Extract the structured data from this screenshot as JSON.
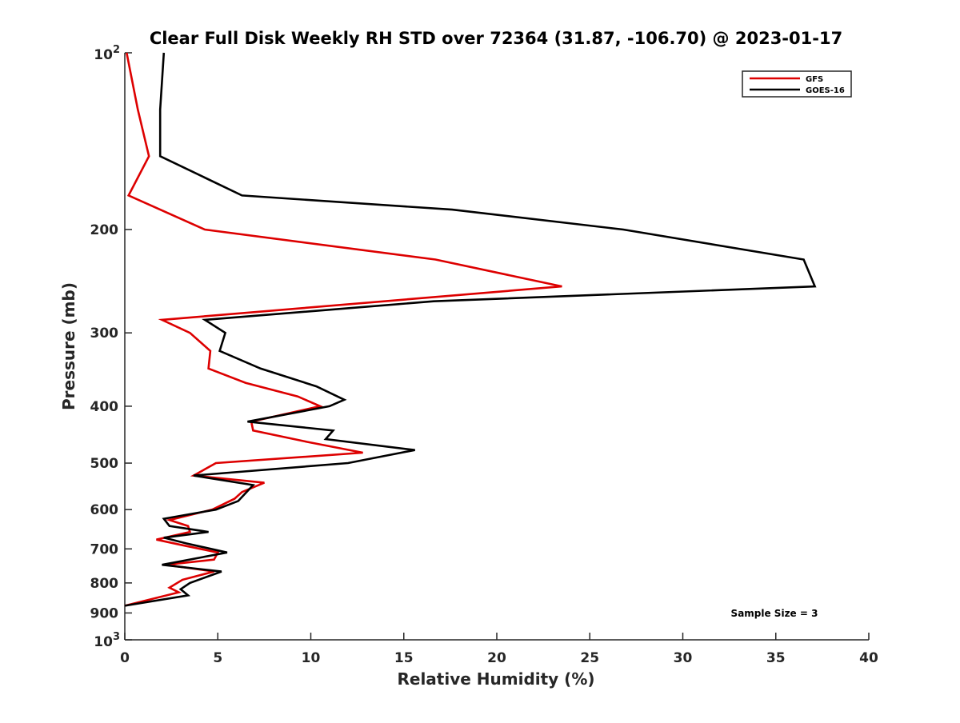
{
  "chart_data": {
    "type": "line",
    "title": "Clear Full Disk Weekly RH STD over 72364 (31.87, -106.70) @ 2023-01-17",
    "xlabel": "Relative Humidity (%)",
    "ylabel": "Pressure (mb)",
    "xlim": [
      0,
      40
    ],
    "ylim": [
      100,
      1000
    ],
    "y_scale": "log-reversed",
    "x_ticks": [
      0,
      5,
      10,
      15,
      20,
      25,
      30,
      35,
      40
    ],
    "y_ticks": [
      {
        "value": 100,
        "label": "10",
        "exp": "2"
      },
      {
        "value": 200,
        "label": "200"
      },
      {
        "value": 300,
        "label": "300"
      },
      {
        "value": 400,
        "label": "400"
      },
      {
        "value": 500,
        "label": "500"
      },
      {
        "value": 600,
        "label": "600"
      },
      {
        "value": 700,
        "label": "700"
      },
      {
        "value": 800,
        "label": "800"
      },
      {
        "value": 900,
        "label": "900"
      },
      {
        "value": 1000,
        "label": "10",
        "exp": "3"
      }
    ],
    "grid": false,
    "legend_position": "top-right",
    "annotation": "Sample Size = 3",
    "series": [
      {
        "name": "GFS",
        "color": "#dd0000",
        "points": [
          [
            0.1,
            100
          ],
          [
            0.7,
            125
          ],
          [
            1.3,
            150
          ],
          [
            0.2,
            175
          ],
          [
            4.3,
            200
          ],
          [
            16.7,
            225
          ],
          [
            23.5,
            250
          ],
          [
            2.0,
            285
          ],
          [
            3.5,
            300
          ],
          [
            4.6,
            322
          ],
          [
            4.5,
            345
          ],
          [
            6.5,
            365
          ],
          [
            9.3,
            385
          ],
          [
            10.5,
            400
          ],
          [
            6.8,
            425
          ],
          [
            6.9,
            440
          ],
          [
            9.8,
            460
          ],
          [
            12.8,
            480
          ],
          [
            4.9,
            500
          ],
          [
            3.7,
            525
          ],
          [
            7.5,
            540
          ],
          [
            6.3,
            560
          ],
          [
            5.9,
            575
          ],
          [
            4.7,
            600
          ],
          [
            2.4,
            625
          ],
          [
            3.4,
            640
          ],
          [
            3.5,
            655
          ],
          [
            1.7,
            675
          ],
          [
            3.1,
            690
          ],
          [
            5.0,
            710
          ],
          [
            4.8,
            730
          ],
          [
            2.2,
            745
          ],
          [
            4.8,
            765
          ],
          [
            3.1,
            790
          ],
          [
            2.4,
            815
          ],
          [
            2.9,
            830
          ],
          [
            0.0,
            875
          ]
        ]
      },
      {
        "name": "GOES-16",
        "color": "#000000",
        "points": [
          [
            2.1,
            100
          ],
          [
            1.9,
            125
          ],
          [
            1.9,
            150
          ],
          [
            6.3,
            175
          ],
          [
            17.6,
            185
          ],
          [
            26.8,
            200
          ],
          [
            36.5,
            225
          ],
          [
            37.1,
            250
          ],
          [
            16.6,
            265
          ],
          [
            4.3,
            285
          ],
          [
            5.4,
            300
          ],
          [
            5.1,
            322
          ],
          [
            7.3,
            345
          ],
          [
            10.3,
            370
          ],
          [
            11.8,
            390
          ],
          [
            11.0,
            400
          ],
          [
            6.6,
            425
          ],
          [
            11.2,
            440
          ],
          [
            10.8,
            455
          ],
          [
            15.6,
            475
          ],
          [
            12.0,
            500
          ],
          [
            3.7,
            525
          ],
          [
            6.9,
            545
          ],
          [
            6.1,
            580
          ],
          [
            4.9,
            600
          ],
          [
            2.1,
            622
          ],
          [
            2.4,
            640
          ],
          [
            4.5,
            655
          ],
          [
            2.1,
            670
          ],
          [
            3.3,
            685
          ],
          [
            5.5,
            710
          ],
          [
            2.0,
            745
          ],
          [
            5.2,
            765
          ],
          [
            3.5,
            800
          ],
          [
            3.0,
            820
          ],
          [
            3.4,
            840
          ],
          [
            0.0,
            875
          ]
        ]
      }
    ]
  }
}
